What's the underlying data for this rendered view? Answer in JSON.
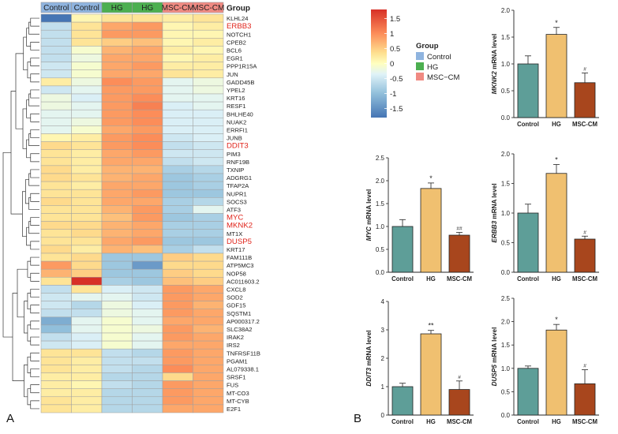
{
  "panel_a": {
    "letter": "A",
    "column_groups": [
      "Control",
      "Control",
      "HG",
      "HG",
      "MSC-CM",
      "MSC-CM"
    ],
    "group_row_label": "Group",
    "genes": [
      "KLHL24",
      "ERBB3",
      "NOTCH1",
      "CPEB2",
      "BCL6",
      "EGR1",
      "PPP1R15A",
      "JUN",
      "GADD45B",
      "YPEL2",
      "KRT16",
      "RESF1",
      "BHLHE40",
      "NUAK2",
      "ERRFI1",
      "JUNB",
      "DDIT3",
      "PIM3",
      "RNF19B",
      "TXNIP",
      "ADGRG1",
      "TFAP2A",
      "NUPR1",
      "SOCS3",
      "ATF3",
      "MYC",
      "MKNK2",
      "MT1X",
      "DUSP5",
      "KRT17",
      "FAM111B",
      "ATP5MC3",
      "NOP58",
      "AC011603.2",
      "CXCL8",
      "SOD2",
      "GDF15",
      "SQSTM1",
      "AP000317.2",
      "SLC38A2",
      "IRAK2",
      "IRS2",
      "TNFRSF11B",
      "PGAM1",
      "AL079338.1",
      "SRSF1",
      "FUS",
      "MT-CO3",
      "MT-CYB",
      "E2F1"
    ],
    "highlighted_genes": [
      "ERBB3",
      "DDIT3",
      "MYC",
      "MKNK2",
      "DUSP5"
    ],
    "highlight_color": "#e0241b",
    "highlight_color_erbb3": "#f05a28",
    "matrix": [
      [
        -1.8,
        0.1,
        0.3,
        0.3,
        0.2,
        0.3
      ],
      [
        -0.6,
        0.3,
        0.8,
        0.9,
        0.1,
        0.2
      ],
      [
        -0.6,
        0.3,
        0.9,
        0.9,
        0.1,
        0.1
      ],
      [
        -0.6,
        0.3,
        0.5,
        0.6,
        0.1,
        0.2
      ],
      [
        -0.6,
        -0.1,
        0.7,
        0.8,
        0.2,
        0.1
      ],
      [
        -0.6,
        -0.2,
        0.8,
        0.8,
        0.1,
        0.2
      ],
      [
        -0.5,
        -0.1,
        0.8,
        0.9,
        0.2,
        0.2
      ],
      [
        -0.5,
        -0.1,
        0.8,
        0.8,
        0.3,
        0.2
      ],
      [
        0.2,
        -0.2,
        1.0,
        0.9,
        -0.3,
        -0.2
      ],
      [
        -0.5,
        -0.3,
        0.9,
        0.9,
        -0.3,
        -0.2
      ],
      [
        -0.2,
        -0.4,
        0.9,
        1.0,
        -0.3,
        -0.3
      ],
      [
        -0.2,
        -0.3,
        0.9,
        1.1,
        -0.4,
        -0.3
      ],
      [
        -0.3,
        -0.3,
        0.9,
        1.0,
        -0.4,
        -0.4
      ],
      [
        -0.3,
        -0.2,
        0.9,
        1.0,
        -0.4,
        -0.4
      ],
      [
        -0.3,
        -0.1,
        0.8,
        0.9,
        -0.4,
        -0.4
      ],
      [
        0.1,
        0.2,
        0.9,
        1.0,
        -0.5,
        -0.4
      ],
      [
        0.4,
        0.3,
        0.9,
        1.0,
        -0.6,
        -0.5
      ],
      [
        0.3,
        0.2,
        0.8,
        0.9,
        -0.5,
        -0.5
      ],
      [
        0.3,
        0.2,
        0.8,
        0.8,
        -0.6,
        -0.5
      ],
      [
        0.4,
        0.2,
        0.7,
        0.7,
        -0.8,
        -0.7
      ],
      [
        0.4,
        0.3,
        0.7,
        0.8,
        -0.9,
        -0.8
      ],
      [
        0.3,
        0.2,
        0.8,
        0.8,
        -0.9,
        -0.8
      ],
      [
        0.3,
        0.3,
        0.8,
        0.9,
        -0.9,
        -0.9
      ],
      [
        0.4,
        0.3,
        0.8,
        0.8,
        -0.8,
        -0.7
      ],
      [
        0.3,
        0.3,
        0.7,
        0.9,
        -0.8,
        -0.3
      ],
      [
        0.3,
        0.3,
        0.6,
        0.9,
        -0.9,
        -0.8
      ],
      [
        0.4,
        0.4,
        0.7,
        0.8,
        -0.8,
        -0.8
      ],
      [
        0.3,
        0.4,
        0.7,
        0.8,
        -0.8,
        -0.8
      ],
      [
        0.3,
        0.3,
        0.8,
        0.9,
        -0.9,
        -0.9
      ],
      [
        0.4,
        0.2,
        0.7,
        0.6,
        -0.8,
        -0.6
      ],
      [
        0.3,
        0.4,
        -0.9,
        -0.9,
        0.5,
        0.4
      ],
      [
        0.9,
        0.4,
        -0.9,
        -1.4,
        0.4,
        0.4
      ],
      [
        0.7,
        0.5,
        -0.9,
        -0.9,
        0.5,
        0.4
      ],
      [
        0.3,
        1.8,
        -0.8,
        -0.9,
        0.6,
        0.5
      ],
      [
        -0.6,
        0.3,
        -0.4,
        -0.5,
        0.9,
        0.8
      ],
      [
        -0.5,
        -0.3,
        -0.3,
        -0.5,
        0.9,
        0.8
      ],
      [
        -0.5,
        -0.7,
        -0.2,
        -0.4,
        0.9,
        0.7
      ],
      [
        -0.6,
        -0.6,
        -0.2,
        -0.3,
        0.9,
        0.8
      ],
      [
        -1.2,
        -0.3,
        -0.1,
        -0.3,
        0.8,
        0.8
      ],
      [
        -1.0,
        -0.3,
        -0.1,
        -0.2,
        0.9,
        0.7
      ],
      [
        -0.6,
        -0.4,
        -0.1,
        -0.3,
        0.9,
        0.8
      ],
      [
        -0.5,
        -0.4,
        -0.1,
        -0.3,
        0.8,
        0.8
      ],
      [
        0.3,
        0.3,
        -0.6,
        -0.7,
        0.9,
        0.8
      ],
      [
        0.3,
        0.2,
        -0.6,
        -0.6,
        0.9,
        0.8
      ],
      [
        0.3,
        0.2,
        -0.6,
        -0.7,
        1.0,
        0.8
      ],
      [
        0.2,
        0.2,
        -0.7,
        -0.7,
        0.4,
        0.8
      ],
      [
        0.2,
        0.1,
        -0.6,
        -0.7,
        0.9,
        0.8
      ],
      [
        0.2,
        0.2,
        -0.7,
        -0.7,
        0.9,
        0.8
      ],
      [
        0.3,
        0.2,
        -0.7,
        -0.7,
        0.9,
        0.8
      ],
      [
        0.3,
        0.2,
        -0.7,
        -0.7,
        0.8,
        0.8
      ]
    ],
    "colorbar": {
      "ticks": [
        "1.5",
        "1",
        "0.5",
        "0",
        "-0.5",
        "-1",
        "-1.5"
      ],
      "tick_values": [
        1.5,
        1,
        0.5,
        0,
        -0.5,
        -1,
        -1.5
      ],
      "min": -1.8,
      "max": 1.8
    },
    "group_legend": {
      "title": "Group",
      "items": [
        {
          "label": "Control",
          "color": "#8fb4df"
        },
        {
          "label": "HG",
          "color": "#4caf50"
        },
        {
          "label": "MSC−CM",
          "color": "#f08a82"
        }
      ]
    }
  },
  "panel_b": {
    "letter": "B",
    "bar_colors": {
      "Control": "#5e9e98",
      "HG": "#f0c070",
      "MSC-CM": "#a8461d"
    },
    "chart_data": [
      {
        "type": "bar",
        "gene": "MKNK2",
        "ylabel_suffix": " mRNA level",
        "categories": [
          "Control",
          "HG",
          "MSC-CM"
        ],
        "values": [
          1.0,
          1.55,
          0.65
        ],
        "errors": [
          0.15,
          0.13,
          0.18
        ],
        "significance": [
          "",
          "*",
          "#"
        ],
        "ylim": [
          0,
          2.0
        ],
        "yticks": [
          "0.0",
          "0.5",
          "1.0",
          "1.5",
          "2.0"
        ]
      },
      {
        "type": "bar",
        "gene": "MYC",
        "ylabel_suffix": " mRNA level",
        "categories": [
          "Control",
          "HG",
          "MSC-CM"
        ],
        "values": [
          1.0,
          1.83,
          0.81
        ],
        "errors": [
          0.15,
          0.12,
          0.06
        ],
        "significance": [
          "",
          "*",
          "##"
        ],
        "ylim": [
          0,
          2.5
        ],
        "yticks": [
          "0.0",
          "0.5",
          "1.0",
          "1.5",
          "2.0",
          "2.5"
        ]
      },
      {
        "type": "bar",
        "gene": "ERBB3",
        "ylabel_suffix": " mRNA level",
        "categories": [
          "Control",
          "HG",
          "MSC-CM"
        ],
        "values": [
          1.0,
          1.67,
          0.56
        ],
        "errors": [
          0.15,
          0.15,
          0.05
        ],
        "significance": [
          "",
          "*",
          "#"
        ],
        "ylim": [
          0,
          2.0
        ],
        "yticks": [
          "0.0",
          "0.5",
          "1.0",
          "1.5",
          "2.0"
        ]
      },
      {
        "type": "bar",
        "gene": "DDIT3",
        "ylabel_suffix": " mRNA level",
        "categories": [
          "Control",
          "HG",
          "MSC-CM"
        ],
        "values": [
          1.0,
          2.86,
          0.9
        ],
        "errors": [
          0.12,
          0.12,
          0.3
        ],
        "significance": [
          "",
          "**",
          "#"
        ],
        "ylim": [
          0,
          4
        ],
        "yticks": [
          "0",
          "1",
          "2",
          "3",
          "4"
        ]
      },
      {
        "type": "bar",
        "gene": "DUSP5",
        "ylabel_suffix": " mRNA level",
        "categories": [
          "Control",
          "HG",
          "MSC-CM"
        ],
        "values": [
          1.0,
          1.82,
          0.67
        ],
        "errors": [
          0.05,
          0.12,
          0.3
        ],
        "significance": [
          "",
          "*",
          "#"
        ],
        "ylim": [
          0,
          2.5
        ],
        "yticks": [
          "0.0",
          "0.5",
          "1.0",
          "1.5",
          "2.0",
          "2.5"
        ]
      }
    ]
  }
}
